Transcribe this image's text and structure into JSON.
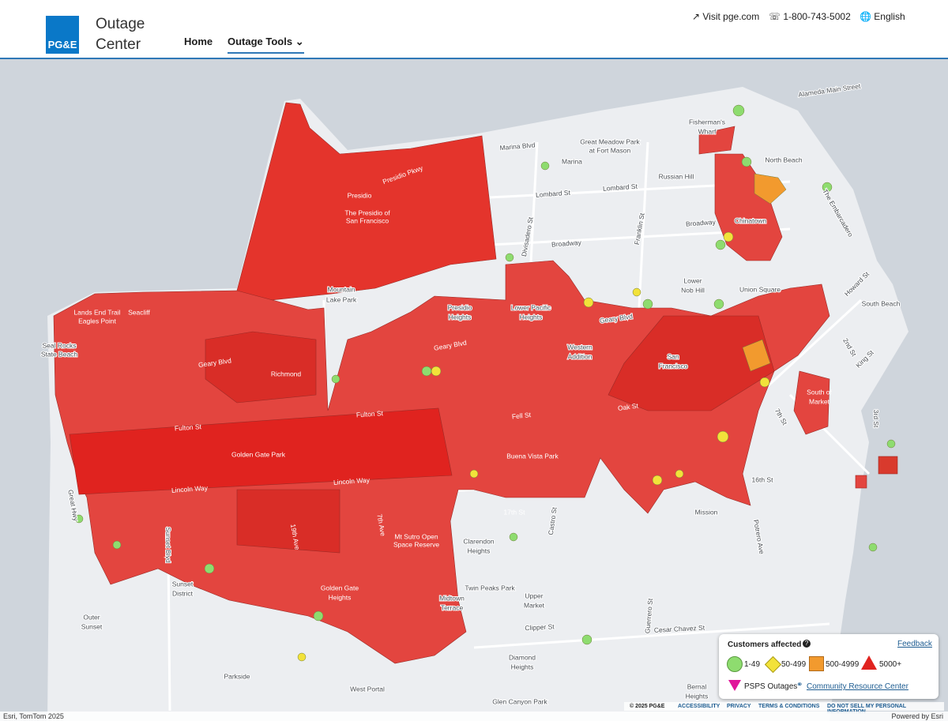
{
  "header": {
    "logo": "PG&E",
    "title_line1": "Outage",
    "title_line2": "Center",
    "nav": [
      "Home",
      "Outage Tools"
    ],
    "links": [
      "Visit pge.com",
      "1-800-743-5002",
      "English"
    ]
  },
  "map": {
    "labels": [
      "Marina Blvd",
      "Marina",
      "Great Meadow Park",
      "at Fort Mason",
      "Fisherman's",
      "Wharf",
      "Russian Hill",
      "North Beach",
      "Lombard St",
      "Lombard St",
      "Chinatown",
      "Broadway",
      "Broadway",
      "Divisadero St",
      "Franklin St",
      "Presidio Pkwy",
      "Presidio",
      "The Presidio of",
      "San Francisco",
      "Mountain",
      "Lake Park",
      "Presidio",
      "Heights",
      "Lower Pacific",
      "Heights",
      "Lower",
      "Nob Hill",
      "Union Square",
      "South Beach",
      "Geary Blvd",
      "Geary Blvd",
      "Geary Blvd",
      "Western",
      "Addition",
      "San",
      "Francisco",
      "Richmond",
      "Lands End Trail",
      "Eagles Point",
      "Seacliff",
      "Seal Rocks",
      "State Beach",
      "Fulton St",
      "Fulton St",
      "Golden Gate Park",
      "Lincoln Way",
      "Lincoln Way",
      "Fell St",
      "Oak St",
      "Buena Vista Park",
      "17th St",
      "Castro St",
      "Clarendon",
      "Heights",
      "Mt Sutro Open",
      "Space Reserve",
      "Sunset Blvd",
      "Sunset",
      "District",
      "Outer",
      "Sunset",
      "Golden Gate",
      "Heights",
      "19th Ave",
      "7th Ave",
      "Twin Peaks Park",
      "Upper",
      "Market",
      "Midtown",
      "Terrace",
      "Mission",
      "Clipper St",
      "Cesar Chavez St",
      "Diamond",
      "Heights",
      "Parkside",
      "West Portal",
      "Glen Canyon Park",
      "Bernal",
      "Heights",
      "Great Hwy",
      "Howard St",
      "King St",
      "2nd St",
      "3rd St",
      "16th St",
      "Potrero Ave",
      "Guerrero St",
      "South of",
      "Market",
      "The Embarcadero",
      "Alameda Main Street",
      "7th St"
    ]
  },
  "legend": {
    "title": "Customers affected",
    "feedback": "Feedback",
    "items": [
      "1-49",
      "50-499",
      "500-4999",
      "5000+"
    ],
    "psps": "PSPS Outages",
    "resource": "Community Resource Center"
  },
  "footer": {
    "copyright": "© 2025 PG&E",
    "links": [
      "ACCESSIBILITY",
      "PRIVACY",
      "TERMS & CONDITIONS",
      "DO NOT SELL MY PERSONAL INFORMATION"
    ],
    "attribution": "Esri, TomTom 2025",
    "powered": "Powered by Esri"
  }
}
